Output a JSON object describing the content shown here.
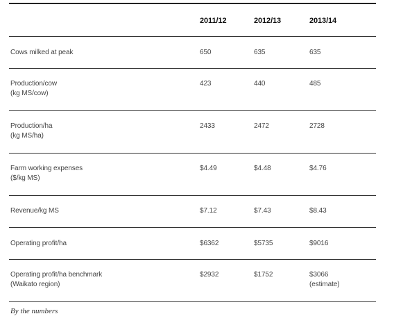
{
  "table": {
    "headers": [
      "",
      "2011/12",
      "2012/13",
      "2013/14"
    ],
    "rows": [
      {
        "label": [
          "Cows milked at peak"
        ],
        "values": [
          "650",
          "635",
          "635"
        ],
        "value3_extra": ""
      },
      {
        "label": [
          "Production/cow",
          "(kg MS/cow)"
        ],
        "values": [
          "423",
          "440",
          "485"
        ],
        "value3_extra": ""
      },
      {
        "label": [
          "Production/ha",
          "(kg MS/ha)"
        ],
        "values": [
          "2433",
          "2472",
          "2728"
        ],
        "value3_extra": ""
      },
      {
        "label": [
          "Farm working expenses",
          "($/kg MS)"
        ],
        "values": [
          "$4.49",
          "$4.48",
          "$4.76"
        ],
        "value3_extra": ""
      },
      {
        "label": [
          "Revenue/kg MS"
        ],
        "values": [
          "$7.12",
          "$7.43",
          "$8.43"
        ],
        "value3_extra": ""
      },
      {
        "label": [
          "Operating profit/ha"
        ],
        "values": [
          "$6362",
          "$5735",
          "$9016"
        ],
        "value3_extra": ""
      },
      {
        "label": [
          "Operating profit/ha benchmark",
          "(Waikato region)"
        ],
        "values": [
          "$2932",
          "$1752",
          "$3066"
        ],
        "value3_extra": "(estimate)"
      }
    ]
  },
  "caption": "By the numbers"
}
